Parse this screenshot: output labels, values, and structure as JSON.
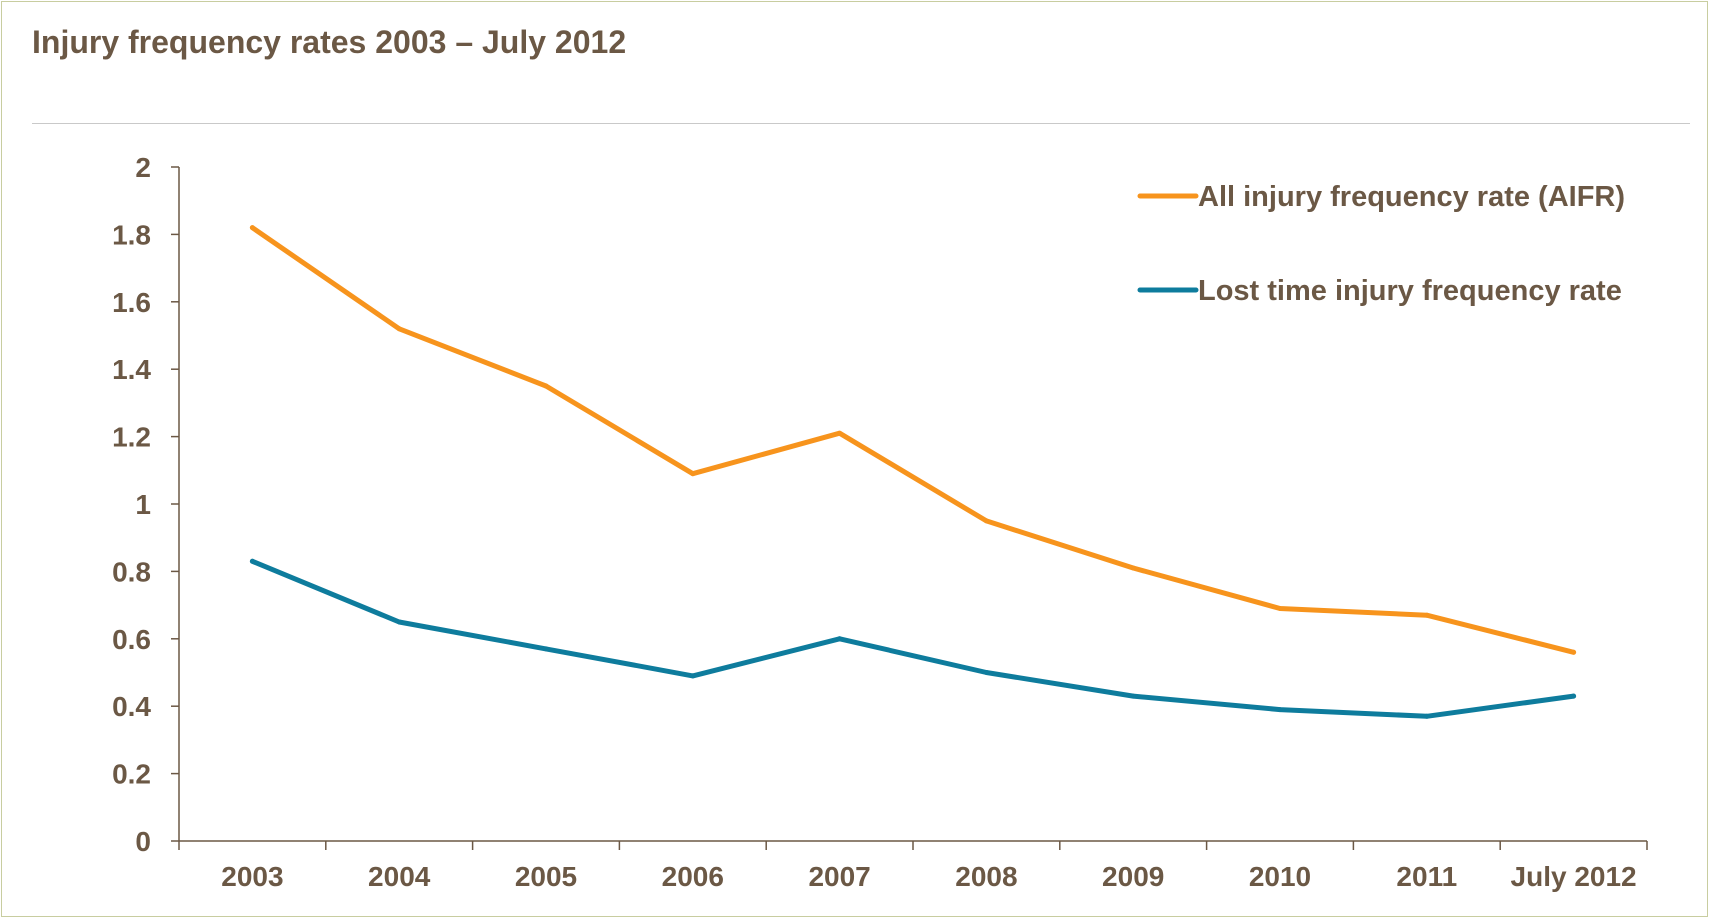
{
  "chart_data": {
    "type": "line",
    "title": "Injury frequency rates 2003 – July 2012",
    "categories": [
      "2003",
      "2004",
      "2005",
      "2006",
      "2007",
      "2008",
      "2009",
      "2010",
      "2011",
      "July 2012"
    ],
    "series": [
      {
        "name": "All injury frequency rate (AIFR)",
        "color": "#f7941d",
        "values": [
          1.82,
          1.52,
          1.35,
          1.09,
          1.21,
          0.95,
          0.81,
          0.69,
          0.67,
          0.56
        ]
      },
      {
        "name": "Lost time injury frequency rate",
        "color": "#0e7c9d",
        "values": [
          0.83,
          0.65,
          0.57,
          0.49,
          0.6,
          0.5,
          0.43,
          0.39,
          0.37,
          0.43
        ]
      }
    ],
    "yticks": [
      "0",
      "0.2",
      "0.4",
      "0.6",
      "0.8",
      "1",
      "1.2",
      "1.4",
      "1.6",
      "1.8",
      "2"
    ],
    "ylim": [
      0,
      2
    ],
    "legend_position": "top-right",
    "grid": false
  }
}
